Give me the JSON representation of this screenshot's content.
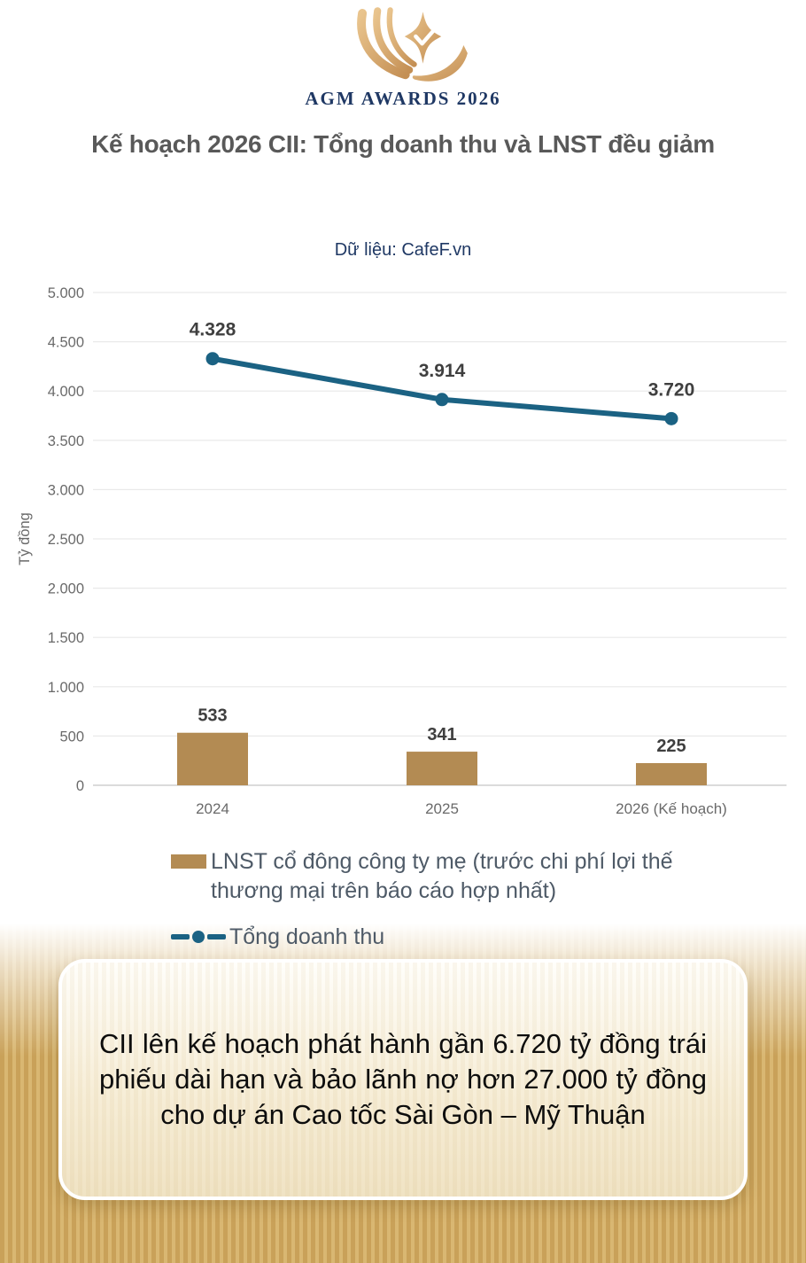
{
  "header": {
    "logo_text": "AGM AWARDS 2026"
  },
  "title": "Kế hoạch 2026 CII: Tổng doanh thu và LNST đều giảm",
  "source_label": "Dữ liệu: CafeF.vn",
  "chart_data": {
    "type": "combo",
    "categories": [
      "2024",
      "2025",
      "2026 (Kế hoạch)"
    ],
    "series": [
      {
        "name": "LNST cổ đông công ty mẹ (trước chi phí lợi thế thương mại trên báo cáo hợp nhất)",
        "type": "bar",
        "values": [
          533,
          341,
          225
        ],
        "labels": [
          "533",
          "341",
          "225"
        ],
        "color": "#b38b53"
      },
      {
        "name": "Tổng doanh thu",
        "type": "line",
        "values": [
          4328,
          3914,
          3720
        ],
        "labels": [
          "4.328",
          "3.914",
          "3.720"
        ],
        "color": "#1b6283"
      }
    ],
    "title": "Kế hoạch 2026 CII: Tổng doanh thu và LNST đều giảm",
    "xlabel": "",
    "ylabel": "Tỷ đồng",
    "ylim": [
      0,
      5000
    ],
    "y_ticks": [
      {
        "value": 0,
        "label": "0"
      },
      {
        "value": 500,
        "label": "500"
      },
      {
        "value": 1000,
        "label": "1.000"
      },
      {
        "value": 1500,
        "label": "1.500"
      },
      {
        "value": 2000,
        "label": "2.000"
      },
      {
        "value": 2500,
        "label": "2.500"
      },
      {
        "value": 3000,
        "label": "3.000"
      },
      {
        "value": 3500,
        "label": "3.500"
      },
      {
        "value": 4000,
        "label": "4.000"
      },
      {
        "value": 4500,
        "label": "4.500"
      },
      {
        "value": 5000,
        "label": "5.000"
      }
    ],
    "grid": true,
    "legend_position": "bottom-left"
  },
  "callout": {
    "text": "CII lên kế hoạch phát hành gần 6.720 tỷ đồng trái phiếu dài hạn và bảo lãnh nợ hơn 27.000 tỷ đồng cho dự án Cao tốc Sài Gòn – Mỹ Thuận"
  },
  "colors": {
    "bar": "#b38b53",
    "line": "#1b6283",
    "title_gray": "#595959",
    "navy": "#1f3864",
    "data_label": "#3f3f3f",
    "gridline": "#e9e9e9",
    "axis_line": "#cfcfcf",
    "gold_stripe_dark": "#c9a159",
    "gold_stripe_light": "#d9b772"
  }
}
